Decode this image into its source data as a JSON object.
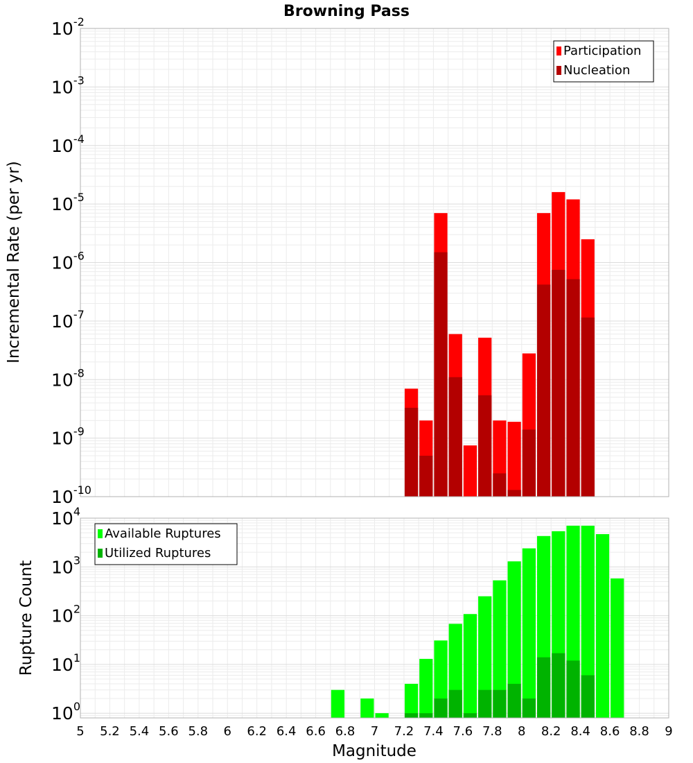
{
  "chart_data": [
    {
      "type": "bar",
      "panel": "top",
      "title": "Browning Pass",
      "xlabel": "",
      "ylabel": "Incremental Rate (per yr)",
      "yscale": "log",
      "ylim": [
        1e-10,
        0.01
      ],
      "xlim": [
        5,
        9
      ],
      "bar_width": 0.1,
      "ytick_labels": [
        {
          "base": "10",
          "exp": "-10"
        },
        {
          "base": "10",
          "exp": "-9"
        },
        {
          "base": "10",
          "exp": "-8"
        },
        {
          "base": "10",
          "exp": "-7"
        },
        {
          "base": "10",
          "exp": "-6"
        },
        {
          "base": "10",
          "exp": "-5"
        },
        {
          "base": "10",
          "exp": "-4"
        },
        {
          "base": "10",
          "exp": "-3"
        },
        {
          "base": "10",
          "exp": "-2"
        }
      ],
      "legend": {
        "position": "top-right",
        "entries": [
          "Participation",
          "Nucleation"
        ]
      },
      "grid": true,
      "categories": [
        7.25,
        7.35,
        7.45,
        7.55,
        7.65,
        7.75,
        7.85,
        7.95,
        8.05,
        8.15,
        8.25,
        8.35,
        8.45
      ],
      "series": [
        {
          "name": "Participation",
          "color": "#ff0000",
          "values": [
            7e-09,
            2e-09,
            7e-06,
            6e-08,
            7.5e-10,
            5.2e-08,
            2e-09,
            1.9e-09,
            2.8e-08,
            7e-06,
            1.6e-05,
            1.2e-05,
            2.5e-06
          ]
        },
        {
          "name": "Nucleation",
          "color": "#b30000",
          "values": [
            3.3e-09,
            5e-10,
            1.5e-06,
            1.1e-08,
            null,
            5.4e-09,
            2.5e-10,
            1.3e-10,
            1.4e-09,
            4.2e-07,
            7.5e-07,
            5.2e-07,
            1.15e-07
          ]
        }
      ]
    },
    {
      "type": "bar",
      "panel": "bottom",
      "title": "",
      "xlabel": "Magnitude",
      "ylabel": "Rupture Count",
      "yscale": "log",
      "ylim": [
        0.8,
        10000
      ],
      "xlim": [
        5,
        9
      ],
      "bar_width": 0.1,
      "ytick_labels": [
        {
          "base": "10",
          "exp": "0"
        },
        {
          "base": "10",
          "exp": "1"
        },
        {
          "base": "10",
          "exp": "2"
        },
        {
          "base": "10",
          "exp": "3"
        },
        {
          "base": "10",
          "exp": "4"
        }
      ],
      "xtick_labels": [
        "5",
        "5.2",
        "5.4",
        "5.6",
        "5.8",
        "6",
        "6.2",
        "6.4",
        "6.6",
        "6.8",
        "7",
        "7.2",
        "7.4",
        "7.6",
        "7.8",
        "8",
        "8.2",
        "8.4",
        "8.6",
        "8.8",
        "9"
      ],
      "legend": {
        "position": "top-left",
        "entries": [
          "Available Ruptures",
          "Utilized Ruptures"
        ]
      },
      "grid": true,
      "categories": [
        6.75,
        6.95,
        7.05,
        7.25,
        7.35,
        7.45,
        7.55,
        7.65,
        7.75,
        7.85,
        7.95,
        8.05,
        8.15,
        8.25,
        8.35,
        8.45,
        8.55,
        8.65
      ],
      "series": [
        {
          "name": "Available Ruptures",
          "color": "#00ff00",
          "values": [
            3,
            2,
            1,
            4,
            13,
            31,
            68,
            108,
            250,
            530,
            1300,
            2400,
            4300,
            5400,
            7000,
            7000,
            4700,
            580
          ]
        },
        {
          "name": "Utilized Ruptures",
          "color": "#00b300",
          "values": [
            null,
            null,
            null,
            1,
            1,
            2,
            3,
            1,
            3,
            3,
            4,
            2,
            14,
            17,
            12,
            6,
            null,
            null
          ]
        }
      ]
    }
  ]
}
